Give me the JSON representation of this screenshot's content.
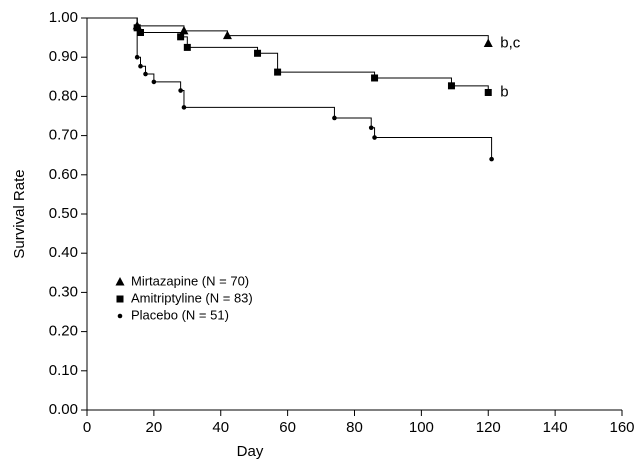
{
  "chart_data": {
    "type": "step",
    "x_label": "Day",
    "y_label": "Survival Rate",
    "xlim": [
      0,
      160
    ],
    "xticks": [
      0,
      20,
      40,
      60,
      80,
      100,
      120,
      140,
      160
    ],
    "ylim": [
      0,
      1
    ],
    "yticks": [
      {
        "value": 0,
        "label": "0.00"
      },
      {
        "value": 0.1,
        "label": "0.10"
      },
      {
        "value": 0.2,
        "label": "0.20"
      },
      {
        "value": 0.3,
        "label": "0.30"
      },
      {
        "value": 0.4,
        "label": "0.40"
      },
      {
        "value": 0.5,
        "label": "0.50"
      },
      {
        "value": 0.6,
        "label": "0.60"
      },
      {
        "value": 0.7,
        "label": "0.70"
      },
      {
        "value": 0.8,
        "label": "0.80"
      },
      {
        "value": 0.9,
        "label": "0.90"
      },
      {
        "value": 1,
        "label": "1.00"
      }
    ],
    "series": [
      {
        "name": "Mirtazapine (N = 70)",
        "marker": "triangle",
        "color": "#000000",
        "end_label": "b,c",
        "x": [
          0,
          15,
          29,
          42,
          120
        ],
        "values": [
          1.0,
          0.98,
          0.967,
          0.955,
          0.935
        ]
      },
      {
        "name": "Amitriptyline (N = 83)",
        "marker": "square",
        "color": "#000000",
        "end_label": "b",
        "x": [
          0,
          15,
          16,
          28,
          30,
          51,
          57,
          86,
          109,
          120
        ],
        "values": [
          1.0,
          0.975,
          0.963,
          0.952,
          0.925,
          0.91,
          0.862,
          0.847,
          0.827,
          0.81
        ]
      },
      {
        "name": "Placebo (N = 51)",
        "marker": "circle",
        "color": "#000000",
        "x": [
          0,
          15,
          16,
          17.5,
          20,
          28,
          29,
          74,
          85,
          86,
          121
        ],
        "values": [
          1.0,
          0.9,
          0.877,
          0.857,
          0.837,
          0.815,
          0.772,
          0.745,
          0.72,
          0.695,
          0.64
        ]
      }
    ]
  }
}
